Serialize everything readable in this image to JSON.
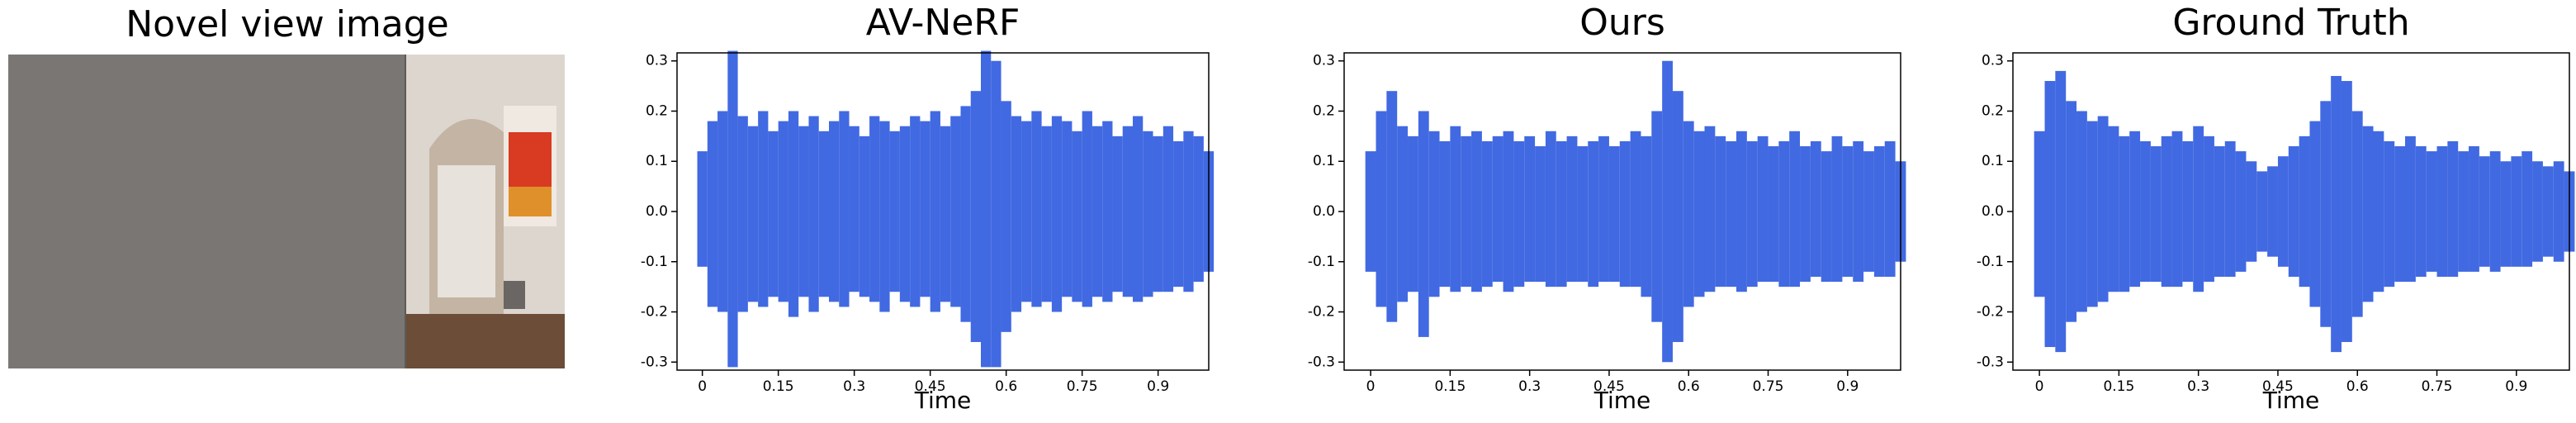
{
  "image_panel": {
    "title": "Novel view image"
  },
  "chart_data": [
    {
      "type": "waveform",
      "title": "AV-NeRF",
      "x_label": "Time",
      "color": "#4169e1",
      "xlim": [
        -0.05,
        1.0
      ],
      "ylim": [
        -0.316,
        0.316
      ],
      "xticks": [
        0,
        0.15,
        0.3,
        0.45,
        0.6,
        0.75,
        0.9
      ],
      "yticks": [
        -0.3,
        -0.2,
        -0.1,
        {
          "value": 0,
          "label": "0.0"
        },
        0.1,
        0.2,
        0.3
      ],
      "x": [
        0,
        0.02,
        0.04,
        0.06,
        0.08,
        0.1,
        0.12,
        0.14,
        0.16,
        0.18,
        0.2,
        0.22,
        0.24,
        0.26,
        0.28,
        0.3,
        0.32,
        0.34,
        0.36,
        0.38,
        0.4,
        0.42,
        0.44,
        0.46,
        0.48,
        0.5,
        0.52,
        0.54,
        0.56,
        0.58,
        0.6,
        0.62,
        0.64,
        0.66,
        0.68,
        0.7,
        0.72,
        0.74,
        0.76,
        0.78,
        0.8,
        0.82,
        0.84,
        0.86,
        0.88,
        0.9,
        0.92,
        0.94,
        0.96,
        0.98,
        1.0
      ],
      "max": [
        0.12,
        0.18,
        0.2,
        0.32,
        0.19,
        0.17,
        0.2,
        0.16,
        0.18,
        0.2,
        0.17,
        0.19,
        0.16,
        0.18,
        0.2,
        0.17,
        0.15,
        0.19,
        0.18,
        0.16,
        0.17,
        0.19,
        0.18,
        0.2,
        0.17,
        0.19,
        0.21,
        0.24,
        0.32,
        0.3,
        0.22,
        0.19,
        0.18,
        0.2,
        0.17,
        0.19,
        0.18,
        0.16,
        0.2,
        0.17,
        0.18,
        0.15,
        0.17,
        0.19,
        0.16,
        0.15,
        0.17,
        0.14,
        0.16,
        0.15,
        0.12
      ],
      "min": [
        -0.11,
        -0.19,
        -0.2,
        -0.31,
        -0.2,
        -0.18,
        -0.19,
        -0.17,
        -0.18,
        -0.21,
        -0.17,
        -0.2,
        -0.17,
        -0.18,
        -0.19,
        -0.16,
        -0.17,
        -0.18,
        -0.2,
        -0.16,
        -0.18,
        -0.19,
        -0.17,
        -0.2,
        -0.18,
        -0.19,
        -0.22,
        -0.26,
        -0.31,
        -0.31,
        -0.24,
        -0.2,
        -0.18,
        -0.19,
        -0.18,
        -0.2,
        -0.17,
        -0.18,
        -0.19,
        -0.17,
        -0.18,
        -0.16,
        -0.17,
        -0.18,
        -0.17,
        -0.16,
        -0.16,
        -0.15,
        -0.16,
        -0.14,
        -0.12
      ]
    },
    {
      "type": "waveform",
      "title": "Ours",
      "x_label": "Time",
      "color": "#4169e1",
      "xlim": [
        -0.05,
        1.0
      ],
      "ylim": [
        -0.316,
        0.316
      ],
      "xticks": [
        0,
        0.15,
        0.3,
        0.45,
        0.6,
        0.75,
        0.9
      ],
      "yticks": [
        -0.3,
        -0.2,
        -0.1,
        {
          "value": 0,
          "label": "0.0"
        },
        0.1,
        0.2,
        0.3
      ],
      "x": [
        0,
        0.02,
        0.04,
        0.06,
        0.08,
        0.1,
        0.12,
        0.14,
        0.16,
        0.18,
        0.2,
        0.22,
        0.24,
        0.26,
        0.28,
        0.3,
        0.32,
        0.34,
        0.36,
        0.38,
        0.4,
        0.42,
        0.44,
        0.46,
        0.48,
        0.5,
        0.52,
        0.54,
        0.56,
        0.58,
        0.6,
        0.62,
        0.64,
        0.66,
        0.68,
        0.7,
        0.72,
        0.74,
        0.76,
        0.78,
        0.8,
        0.82,
        0.84,
        0.86,
        0.88,
        0.9,
        0.92,
        0.94,
        0.96,
        0.98,
        1.0
      ],
      "max": [
        0.12,
        0.2,
        0.24,
        0.17,
        0.15,
        0.2,
        0.16,
        0.14,
        0.17,
        0.15,
        0.16,
        0.14,
        0.15,
        0.16,
        0.14,
        0.15,
        0.13,
        0.16,
        0.14,
        0.15,
        0.13,
        0.14,
        0.15,
        0.13,
        0.14,
        0.16,
        0.15,
        0.2,
        0.3,
        0.24,
        0.18,
        0.16,
        0.17,
        0.15,
        0.14,
        0.16,
        0.14,
        0.15,
        0.13,
        0.14,
        0.16,
        0.13,
        0.14,
        0.12,
        0.15,
        0.13,
        0.14,
        0.12,
        0.13,
        0.14,
        0.1
      ],
      "min": [
        -0.12,
        -0.19,
        -0.22,
        -0.18,
        -0.16,
        -0.25,
        -0.17,
        -0.15,
        -0.16,
        -0.15,
        -0.16,
        -0.15,
        -0.14,
        -0.16,
        -0.15,
        -0.14,
        -0.14,
        -0.15,
        -0.15,
        -0.14,
        -0.14,
        -0.15,
        -0.14,
        -0.14,
        -0.15,
        -0.15,
        -0.17,
        -0.22,
        -0.3,
        -0.26,
        -0.19,
        -0.17,
        -0.16,
        -0.15,
        -0.15,
        -0.16,
        -0.15,
        -0.14,
        -0.14,
        -0.15,
        -0.15,
        -0.14,
        -0.13,
        -0.14,
        -0.14,
        -0.13,
        -0.14,
        -0.12,
        -0.13,
        -0.13,
        -0.1
      ]
    },
    {
      "type": "waveform",
      "title": "Ground Truth",
      "x_label": "Time",
      "color": "#4169e1",
      "xlim": [
        -0.05,
        1.0
      ],
      "ylim": [
        -0.316,
        0.316
      ],
      "xticks": [
        0,
        0.15,
        0.3,
        0.45,
        0.6,
        0.75,
        0.9
      ],
      "yticks": [
        -0.3,
        -0.2,
        -0.1,
        {
          "value": 0,
          "label": "0.0"
        },
        0.1,
        0.2,
        0.3
      ],
      "x": [
        0,
        0.02,
        0.04,
        0.06,
        0.08,
        0.1,
        0.12,
        0.14,
        0.16,
        0.18,
        0.2,
        0.22,
        0.24,
        0.26,
        0.28,
        0.3,
        0.32,
        0.34,
        0.36,
        0.38,
        0.4,
        0.42,
        0.44,
        0.46,
        0.48,
        0.5,
        0.52,
        0.54,
        0.56,
        0.58,
        0.6,
        0.62,
        0.64,
        0.66,
        0.68,
        0.7,
        0.72,
        0.74,
        0.76,
        0.78,
        0.8,
        0.82,
        0.84,
        0.86,
        0.88,
        0.9,
        0.92,
        0.94,
        0.96,
        0.98,
        1.0
      ],
      "max": [
        0.16,
        0.26,
        0.28,
        0.22,
        0.2,
        0.18,
        0.19,
        0.17,
        0.15,
        0.16,
        0.14,
        0.13,
        0.15,
        0.16,
        0.14,
        0.17,
        0.15,
        0.13,
        0.14,
        0.12,
        0.1,
        0.08,
        0.09,
        0.11,
        0.13,
        0.15,
        0.18,
        0.22,
        0.27,
        0.26,
        0.2,
        0.17,
        0.16,
        0.14,
        0.13,
        0.15,
        0.13,
        0.12,
        0.13,
        0.14,
        0.12,
        0.13,
        0.11,
        0.12,
        0.1,
        0.11,
        0.12,
        0.1,
        0.09,
        0.1,
        0.08
      ],
      "min": [
        -0.17,
        -0.27,
        -0.28,
        -0.22,
        -0.2,
        -0.19,
        -0.18,
        -0.16,
        -0.16,
        -0.15,
        -0.14,
        -0.14,
        -0.15,
        -0.15,
        -0.14,
        -0.16,
        -0.14,
        -0.13,
        -0.13,
        -0.12,
        -0.1,
        -0.08,
        -0.09,
        -0.11,
        -0.13,
        -0.15,
        -0.19,
        -0.23,
        -0.28,
        -0.26,
        -0.21,
        -0.18,
        -0.16,
        -0.15,
        -0.14,
        -0.14,
        -0.13,
        -0.12,
        -0.13,
        -0.13,
        -0.12,
        -0.12,
        -0.11,
        -0.12,
        -0.11,
        -0.11,
        -0.11,
        -0.1,
        -0.09,
        -0.1,
        -0.08
      ]
    }
  ]
}
